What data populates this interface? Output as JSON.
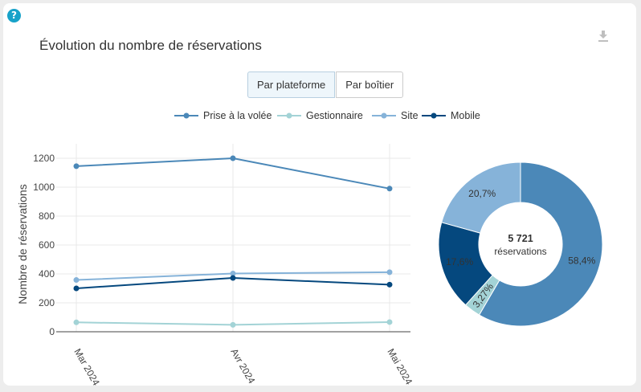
{
  "help_icon_glyph": "?",
  "download_icon": "download-icon",
  "title": "Évolution du nombre de réservations",
  "toggle": [
    {
      "label": "Par plateforme",
      "active": true
    },
    {
      "label": "Par boîtier",
      "active": false
    }
  ],
  "chart_data": [
    {
      "type": "line",
      "x": [
        "Mar 2024",
        "Avr 2024",
        "Mai 2024"
      ],
      "series": [
        {
          "name": "Prise à la volée",
          "color": "#4b88b8",
          "values": [
            1145,
            1200,
            990
          ]
        },
        {
          "name": "Gestionnaire",
          "color": "#a3d3d6",
          "values": [
            65,
            48,
            67
          ]
        },
        {
          "name": "Site",
          "color": "#86b3d9",
          "values": [
            358,
            403,
            412
          ]
        },
        {
          "name": "Mobile",
          "color": "#05487e",
          "values": [
            300,
            372,
            326
          ]
        }
      ],
      "ylabel": "Nombre de réservations",
      "ylim": [
        0,
        1300
      ],
      "yticks": [
        0,
        200,
        400,
        600,
        800,
        1000,
        1200
      ],
      "grid": true,
      "legend": "top"
    },
    {
      "type": "pie",
      "donut": true,
      "center_value": "5 721",
      "center_label": "réservations",
      "slices": [
        {
          "label": "58,4%",
          "value": 58.4,
          "color": "#4b88b8"
        },
        {
          "label": "3,27%",
          "value": 3.27,
          "color": "#a3d3d6"
        },
        {
          "label": "17,6%",
          "value": 17.6,
          "color": "#05487e"
        },
        {
          "label": "20,7%",
          "value": 20.7,
          "color": "#86b3d9"
        }
      ]
    }
  ]
}
